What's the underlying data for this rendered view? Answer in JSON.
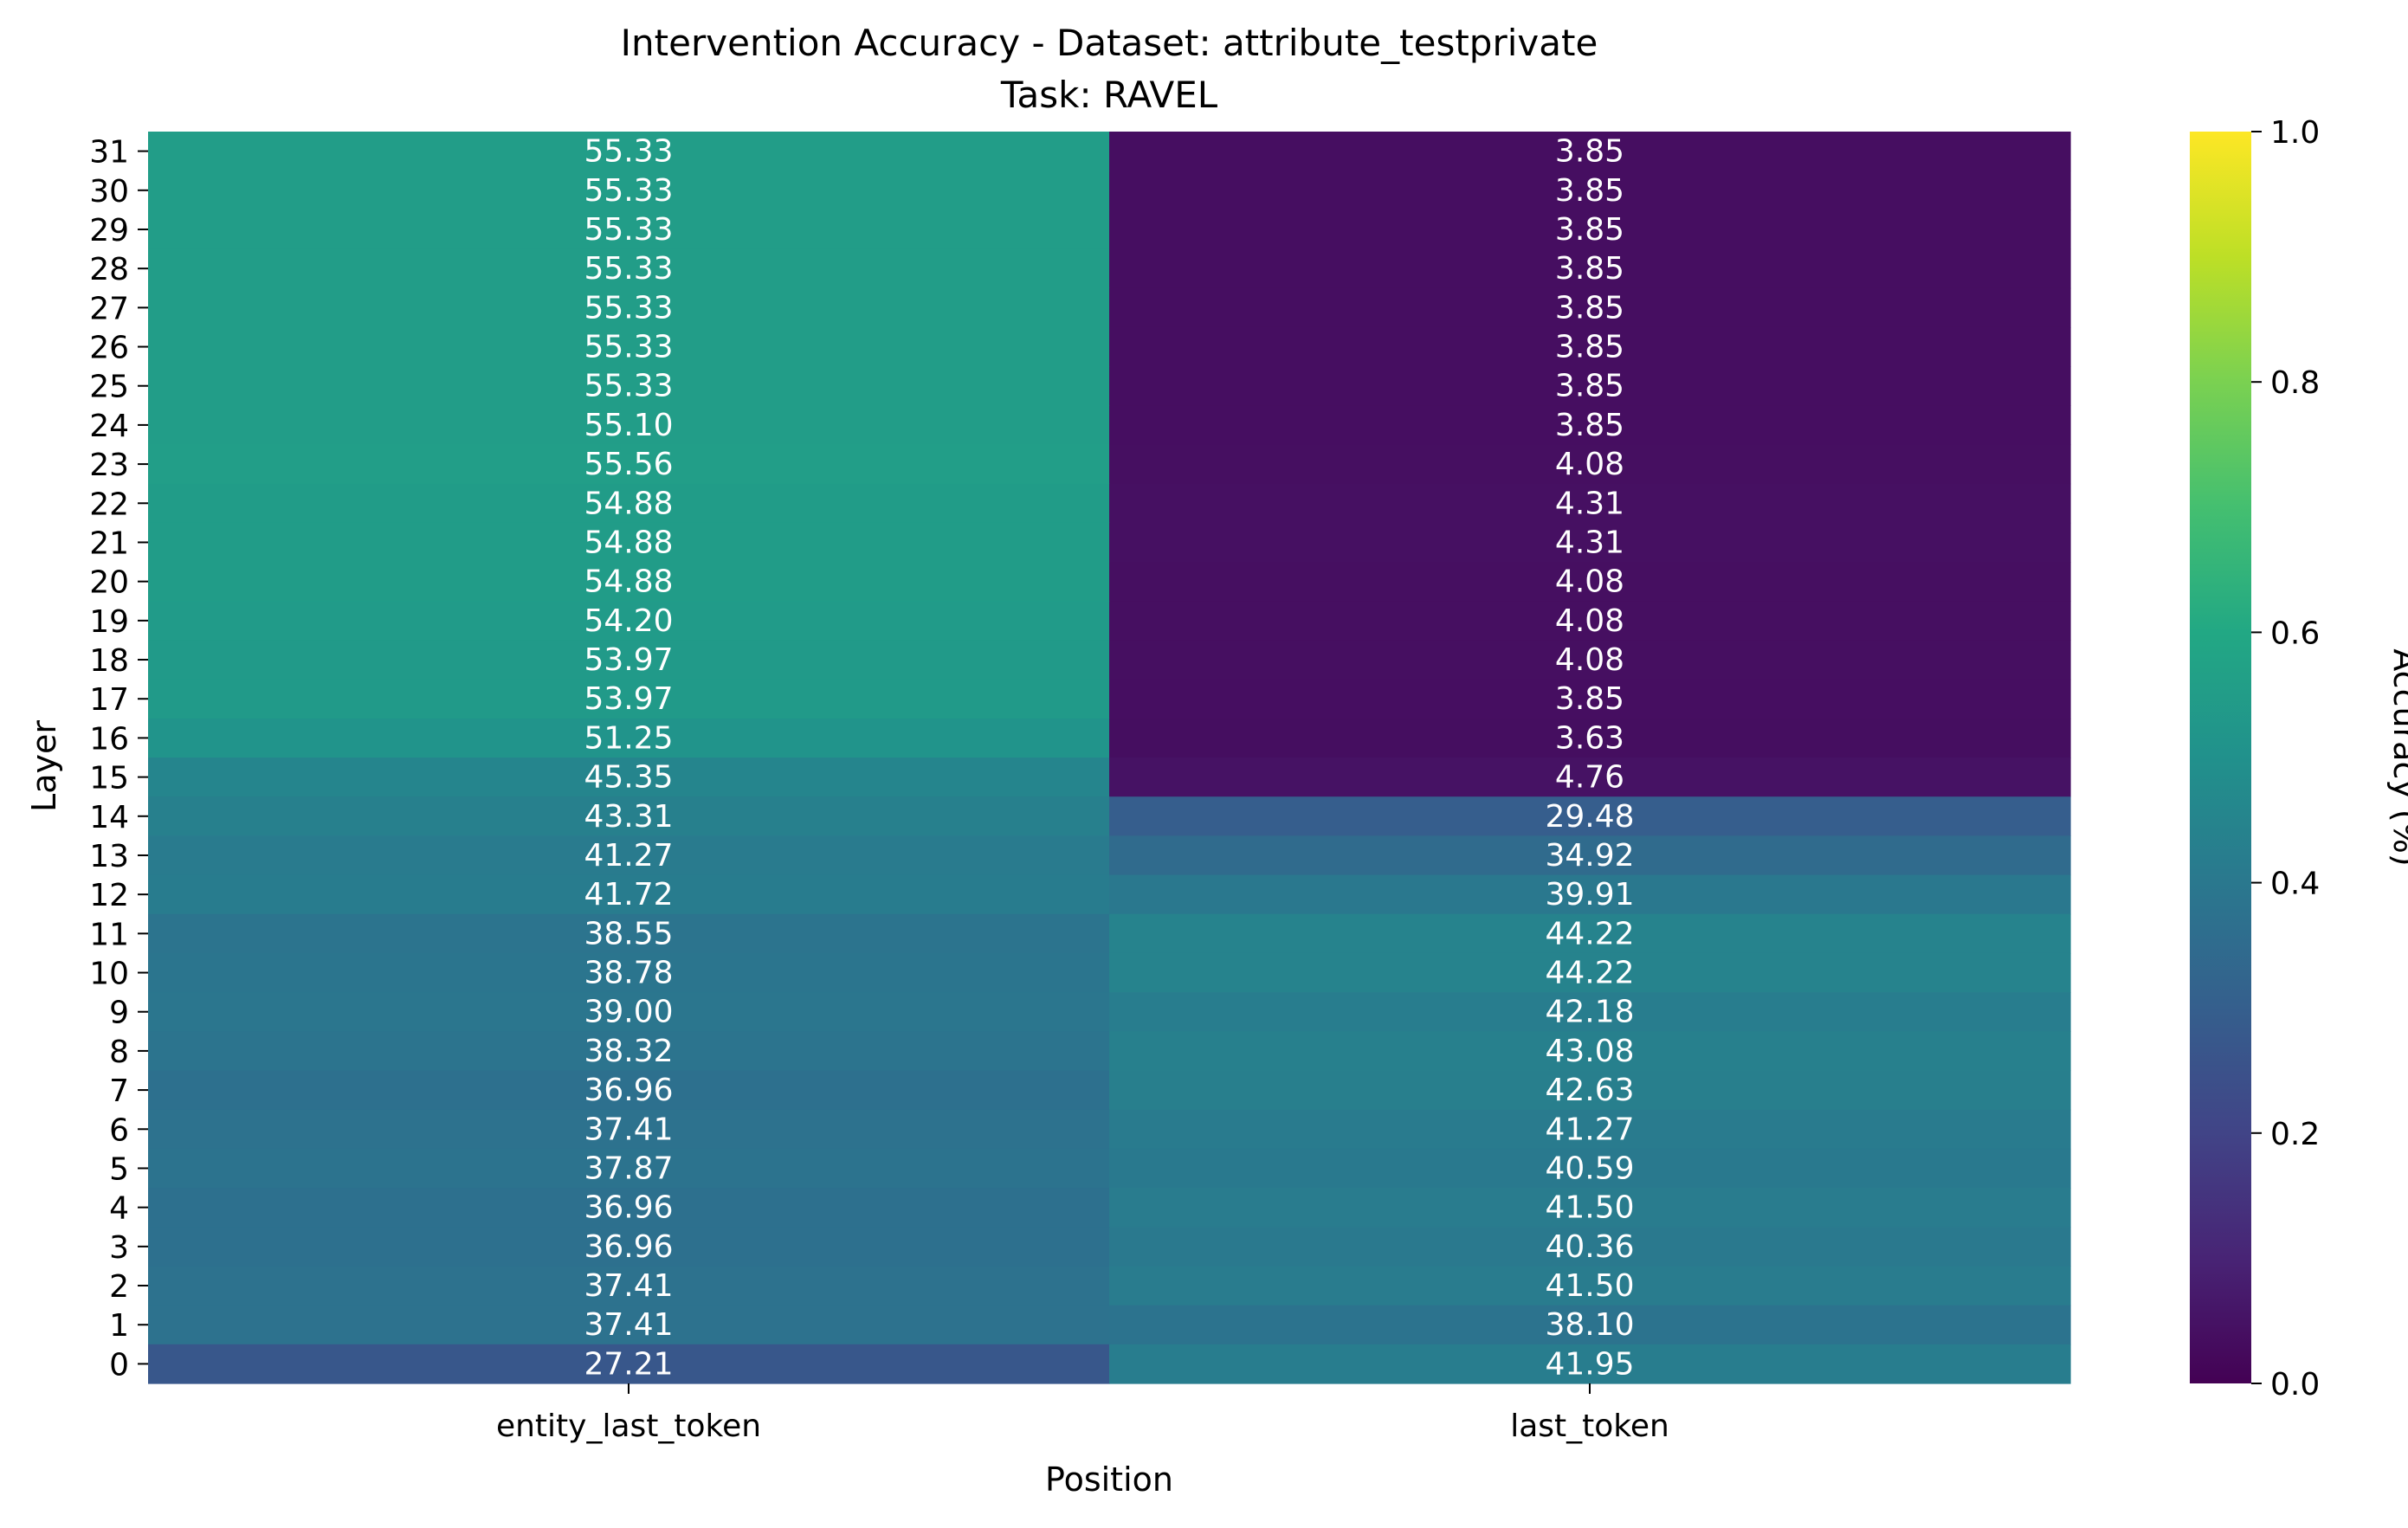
{
  "chart_data": {
    "type": "heatmap",
    "title": "Intervention Accuracy - Dataset: attribute_testprivate",
    "subtitle": "Task: RAVEL",
    "xlabel": "Position",
    "ylabel": "Layer",
    "columns": [
      "entity_last_token",
      "last_token"
    ],
    "rows": [
      "31",
      "30",
      "29",
      "28",
      "27",
      "26",
      "25",
      "24",
      "23",
      "22",
      "21",
      "20",
      "19",
      "18",
      "17",
      "16",
      "15",
      "14",
      "13",
      "12",
      "11",
      "10",
      "9",
      "8",
      "7",
      "6",
      "5",
      "4",
      "3",
      "2",
      "1",
      "0"
    ],
    "values": [
      [
        "55.33",
        "3.85"
      ],
      [
        "55.33",
        "3.85"
      ],
      [
        "55.33",
        "3.85"
      ],
      [
        "55.33",
        "3.85"
      ],
      [
        "55.33",
        "3.85"
      ],
      [
        "55.33",
        "3.85"
      ],
      [
        "55.33",
        "3.85"
      ],
      [
        "55.10",
        "3.85"
      ],
      [
        "55.56",
        "4.08"
      ],
      [
        "54.88",
        "4.31"
      ],
      [
        "54.88",
        "4.31"
      ],
      [
        "54.88",
        "4.08"
      ],
      [
        "54.20",
        "4.08"
      ],
      [
        "53.97",
        "4.08"
      ],
      [
        "53.97",
        "3.85"
      ],
      [
        "51.25",
        "3.63"
      ],
      [
        "45.35",
        "4.76"
      ],
      [
        "43.31",
        "29.48"
      ],
      [
        "41.27",
        "34.92"
      ],
      [
        "41.72",
        "39.91"
      ],
      [
        "38.55",
        "44.22"
      ],
      [
        "38.78",
        "44.22"
      ],
      [
        "39.00",
        "42.18"
      ],
      [
        "38.32",
        "43.08"
      ],
      [
        "36.96",
        "42.63"
      ],
      [
        "37.41",
        "41.27"
      ],
      [
        "37.87",
        "40.59"
      ],
      [
        "36.96",
        "41.50"
      ],
      [
        "36.96",
        "40.36"
      ],
      [
        "37.41",
        "41.50"
      ],
      [
        "37.41",
        "38.10"
      ],
      [
        "27.21",
        "41.95"
      ]
    ],
    "colorbar": {
      "label": "Accuracy (%)",
      "range": [
        0.0,
        1.0
      ],
      "ticks": [
        "0.0",
        "0.2",
        "0.4",
        "0.6",
        "0.8",
        "1.0"
      ],
      "colormap": "viridis"
    }
  }
}
